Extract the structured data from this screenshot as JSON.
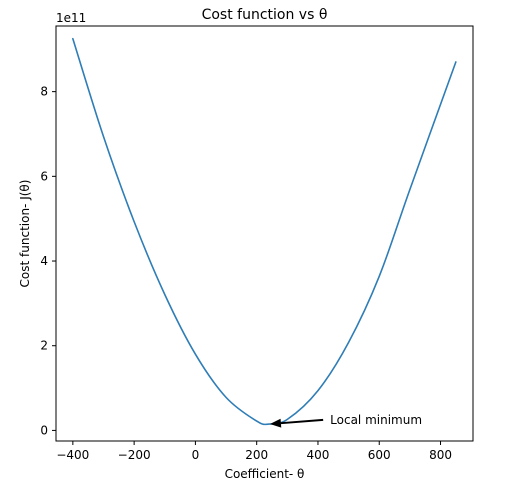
{
  "chart_data": {
    "type": "line",
    "title": "Cost function vs θ",
    "xlabel": "Coefficient- θ",
    "ylabel": "Cost function- J(θ)",
    "offset_text": "1e11",
    "xlim": [
      -455,
      906
    ],
    "ylim": [
      -0.25,
      9.55
    ],
    "x_ticks": [
      -400,
      -200,
      0,
      200,
      400,
      600,
      800
    ],
    "x_tick_labels": [
      "−400",
      "−200",
      "0",
      "200",
      "400",
      "600",
      "800"
    ],
    "y_ticks": [
      0,
      2,
      4,
      6,
      8
    ],
    "y_tick_labels": [
      "0",
      "2",
      "4",
      "6",
      "8"
    ],
    "grid": false,
    "series": [
      {
        "color": "#2f7db6",
        "x": [
          -400,
          -300,
          -200,
          -100,
          0,
          100,
          200,
          240,
          300,
          400,
          500,
          600,
          700,
          850
        ],
        "y": [
          9.25,
          6.94,
          4.93,
          3.21,
          1.8,
          0.78,
          0.22,
          0.15,
          0.26,
          0.94,
          2.08,
          3.64,
          5.69,
          8.7
        ]
      }
    ],
    "annotations": [
      {
        "text": "Local minimum",
        "xy": [
          240,
          0.15
        ],
        "xytext": [
          430,
          0.25
        ]
      }
    ]
  }
}
